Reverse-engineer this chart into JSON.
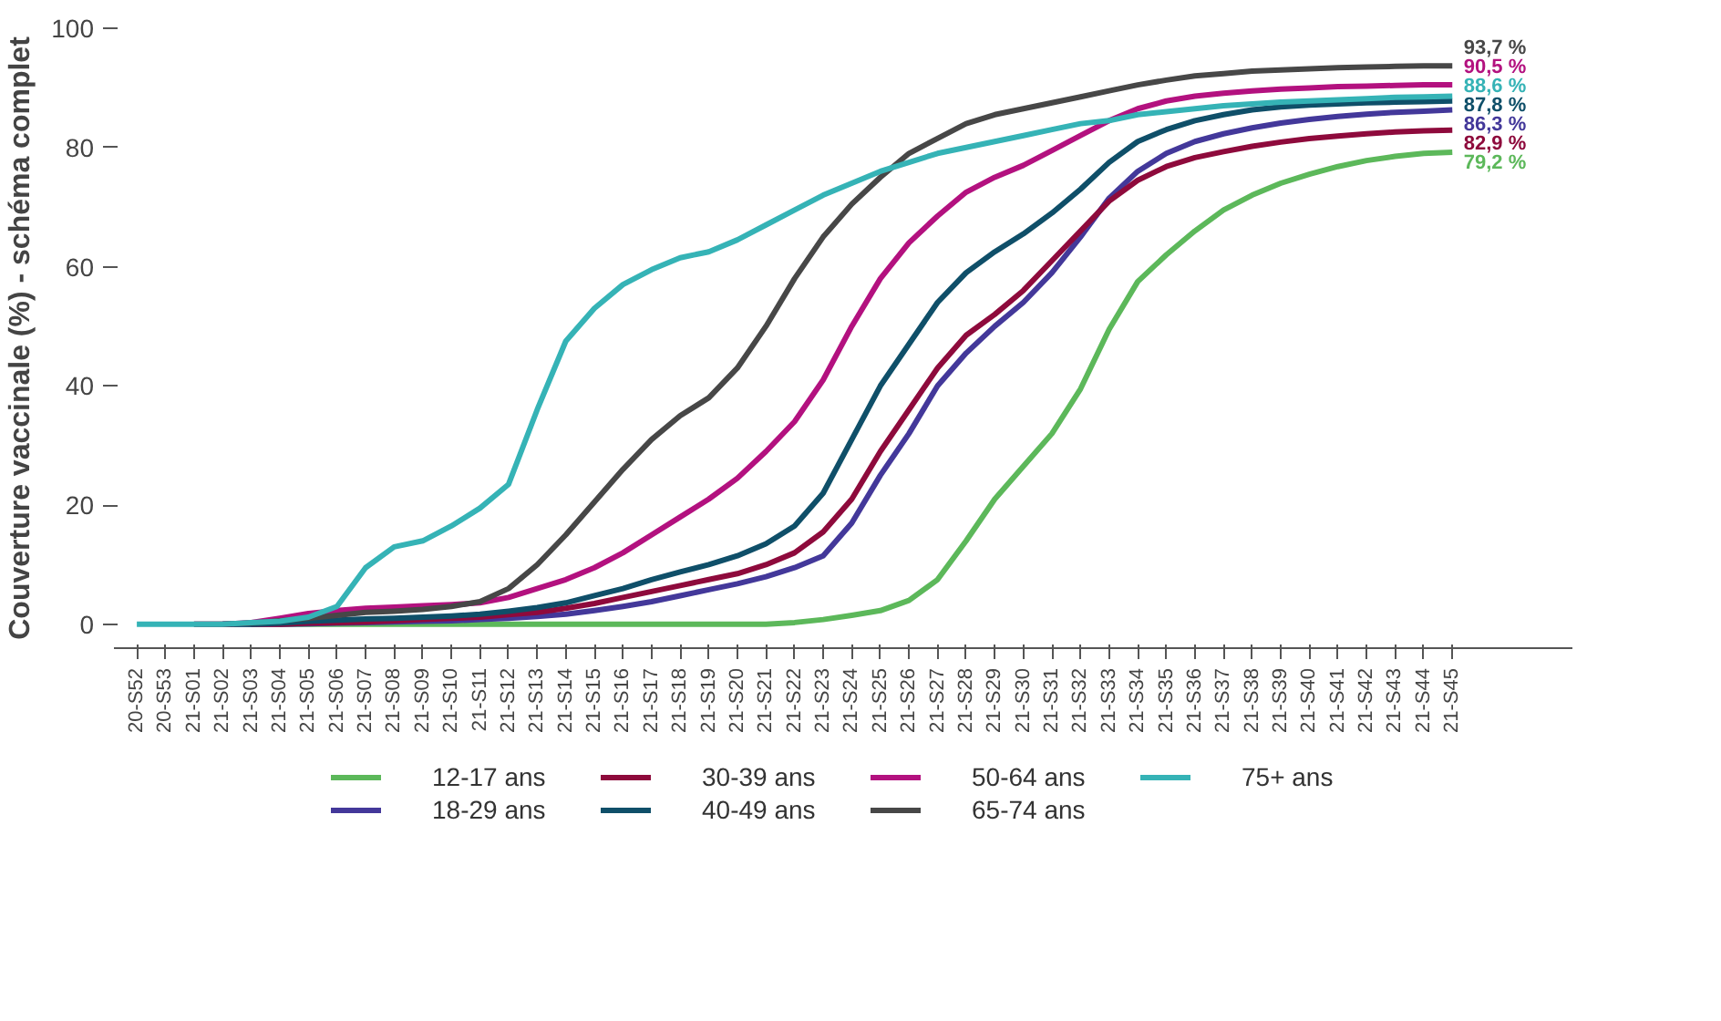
{
  "chart_data": {
    "type": "line",
    "ylabel": "Couverture vaccinale (%) - schéma complet",
    "categories": [
      "20-S52",
      "20-S53",
      "21-S01",
      "21-S02",
      "21-S03",
      "21-S04",
      "21-S05",
      "21-S06",
      "21-S07",
      "21-S08",
      "21-S09",
      "21-S10",
      "21-S11",
      "21-S12",
      "21-S13",
      "21-S14",
      "21-S15",
      "21-S16",
      "21-S17",
      "21-S18",
      "21-S19",
      "21-S20",
      "21-S21",
      "21-S22",
      "21-S23",
      "21-S24",
      "21-S25",
      "21-S26",
      "21-S27",
      "21-S28",
      "21-S29",
      "21-S30",
      "21-S31",
      "21-S32",
      "21-S33",
      "21-S34",
      "21-S35",
      "21-S36",
      "21-S37",
      "21-S38",
      "21-S39",
      "21-S40",
      "21-S41",
      "21-S42",
      "21-S43",
      "21-S44",
      "21-S45"
    ],
    "ylim": [
      -4,
      100
    ],
    "yticks": [
      0,
      20,
      40,
      60,
      80,
      100
    ],
    "grid": false,
    "legend": "bottom",
    "marker": "none",
    "line_style": "solid",
    "series": [
      {
        "name": "12-17 ans",
        "color": "#5cb85a",
        "values": [
          null,
          null,
          null,
          null,
          null,
          0,
          0,
          0,
          0,
          0,
          0,
          0,
          0,
          0,
          0,
          0,
          0,
          0,
          0,
          0,
          0,
          0,
          0,
          0.3,
          0.8,
          1.5,
          2.3,
          4,
          7.5,
          14,
          21,
          26.5,
          32,
          39.5,
          49.5,
          57.5,
          62,
          66,
          69.5,
          72,
          74,
          75.5,
          76.8,
          77.8,
          78.5,
          79,
          79.2
        ],
        "value_labels": [
          null,
          null,
          null,
          null,
          null,
          null,
          null,
          null,
          null,
          null,
          null,
          null,
          null,
          null,
          null,
          null,
          null,
          null,
          null,
          null,
          null,
          null,
          null,
          null,
          null,
          null,
          null,
          null,
          null,
          null,
          null,
          null,
          null,
          null,
          null,
          null,
          null,
          null,
          null,
          null,
          null,
          null,
          null,
          null,
          null,
          null,
          "79,2 %"
        ]
      },
      {
        "name": "18-29 ans",
        "color": "#43389a",
        "values": [
          null,
          null,
          null,
          0,
          0,
          0,
          0.1,
          0.2,
          0.3,
          0.4,
          0.5,
          0.6,
          0.8,
          1,
          1.3,
          1.7,
          2.3,
          3,
          3.8,
          4.8,
          5.8,
          6.8,
          8,
          9.5,
          11.5,
          17,
          25,
          32,
          40,
          45.5,
          50,
          54,
          59,
          65,
          71.5,
          76,
          79,
          81,
          82.3,
          83.3,
          84.1,
          84.7,
          85.2,
          85.6,
          85.9,
          86.1,
          86.3
        ],
        "value_labels": [
          null,
          null,
          null,
          null,
          null,
          null,
          null,
          null,
          null,
          null,
          null,
          null,
          null,
          null,
          null,
          null,
          null,
          null,
          null,
          null,
          null,
          null,
          null,
          null,
          null,
          null,
          null,
          null,
          null,
          null,
          null,
          null,
          null,
          null,
          null,
          null,
          null,
          null,
          null,
          null,
          null,
          null,
          null,
          null,
          null,
          null,
          "86,3 %"
        ]
      },
      {
        "name": "30-39 ans",
        "color": "#8e0a3c",
        "values": [
          null,
          null,
          null,
          null,
          0,
          0,
          0.2,
          0.3,
          0.4,
          0.6,
          0.8,
          1,
          1.2,
          1.6,
          2,
          2.7,
          3.5,
          4.5,
          5.5,
          6.5,
          7.5,
          8.5,
          10,
          12,
          15.5,
          21,
          29,
          36,
          43,
          48.5,
          52,
          56,
          61,
          66,
          71,
          74.5,
          76.8,
          78.3,
          79.3,
          80.2,
          80.9,
          81.5,
          81.9,
          82.3,
          82.6,
          82.8,
          82.9
        ],
        "value_labels": [
          null,
          null,
          null,
          null,
          null,
          null,
          null,
          null,
          null,
          null,
          null,
          null,
          null,
          null,
          null,
          null,
          null,
          null,
          null,
          null,
          null,
          null,
          null,
          null,
          null,
          null,
          null,
          null,
          null,
          null,
          null,
          null,
          null,
          null,
          null,
          null,
          null,
          null,
          null,
          null,
          null,
          null,
          null,
          null,
          null,
          null,
          "82,9 %"
        ]
      },
      {
        "name": "40-49 ans",
        "color": "#0f4f69",
        "values": [
          null,
          null,
          null,
          0,
          0,
          0.2,
          0.5,
          0.7,
          0.9,
          1,
          1.2,
          1.4,
          1.7,
          2.2,
          2.8,
          3.6,
          4.8,
          6,
          7.5,
          8.8,
          10,
          11.5,
          13.5,
          16.5,
          22,
          31,
          40,
          47,
          54,
          59,
          62.5,
          65.5,
          69,
          73,
          77.5,
          81,
          83,
          84.5,
          85.5,
          86.3,
          86.8,
          87.1,
          87.3,
          87.5,
          87.6,
          87.7,
          87.8
        ],
        "value_labels": [
          null,
          null,
          null,
          null,
          null,
          null,
          null,
          null,
          null,
          null,
          null,
          null,
          null,
          null,
          null,
          null,
          null,
          null,
          null,
          null,
          null,
          null,
          null,
          null,
          null,
          null,
          null,
          null,
          null,
          null,
          null,
          null,
          null,
          null,
          null,
          null,
          null,
          null,
          null,
          null,
          null,
          null,
          null,
          null,
          null,
          null,
          "87,8 %"
        ]
      },
      {
        "name": "50-64 ans",
        "color": "#b3117f",
        "values": [
          null,
          null,
          0,
          0,
          0.3,
          1,
          1.8,
          2.3,
          2.7,
          2.9,
          3.1,
          3.3,
          3.6,
          4.5,
          6,
          7.5,
          9.5,
          12,
          15,
          18,
          21,
          24.5,
          29,
          34,
          41,
          50,
          58,
          64,
          68.5,
          72.5,
          75,
          77,
          79.5,
          82,
          84.5,
          86.5,
          87.8,
          88.6,
          89.1,
          89.5,
          89.8,
          90,
          90.2,
          90.3,
          90.4,
          90.5,
          90.5
        ],
        "value_labels": [
          null,
          null,
          null,
          null,
          null,
          null,
          null,
          null,
          null,
          null,
          null,
          null,
          null,
          null,
          null,
          null,
          null,
          null,
          null,
          null,
          null,
          null,
          null,
          null,
          null,
          null,
          null,
          null,
          null,
          null,
          null,
          null,
          null,
          null,
          null,
          null,
          null,
          null,
          null,
          null,
          null,
          null,
          null,
          null,
          null,
          null,
          "90,5 %"
        ]
      },
      {
        "name": "65-74 ans",
        "color": "#474747",
        "values": [
          null,
          null,
          0,
          0,
          0.2,
          0.6,
          1,
          1.5,
          2,
          2.2,
          2.5,
          3,
          3.8,
          6,
          10,
          15,
          20.5,
          26,
          31,
          35,
          38,
          43,
          50,
          58,
          65,
          70.5,
          75,
          79,
          81.5,
          84,
          85.5,
          86.5,
          87.5,
          88.5,
          89.5,
          90.5,
          91.3,
          92,
          92.4,
          92.8,
          93,
          93.2,
          93.4,
          93.5,
          93.6,
          93.7,
          93.7
        ],
        "value_labels": [
          null,
          null,
          null,
          null,
          null,
          null,
          null,
          null,
          null,
          null,
          null,
          null,
          null,
          null,
          null,
          null,
          null,
          null,
          null,
          null,
          null,
          null,
          null,
          null,
          null,
          null,
          null,
          null,
          null,
          null,
          null,
          null,
          null,
          null,
          null,
          null,
          null,
          null,
          null,
          null,
          null,
          null,
          null,
          null,
          null,
          null,
          "93,7 %"
        ]
      },
      {
        "name": "75+ ans",
        "color": "#35b3b6",
        "values": [
          0,
          0,
          0,
          0,
          0.3,
          0.5,
          1.2,
          3,
          9.5,
          13,
          14,
          16.5,
          19.5,
          23.5,
          36,
          47.5,
          53,
          57,
          59.5,
          61.5,
          62.5,
          64.5,
          67,
          69.5,
          72,
          74,
          76,
          77.5,
          79,
          80,
          81,
          82,
          83,
          84,
          84.5,
          85.5,
          86,
          86.5,
          87,
          87.3,
          87.6,
          87.8,
          88,
          88.2,
          88.4,
          88.5,
          88.6
        ],
        "value_labels": [
          null,
          null,
          null,
          null,
          null,
          null,
          null,
          null,
          null,
          null,
          null,
          null,
          null,
          null,
          null,
          null,
          null,
          null,
          null,
          null,
          null,
          null,
          null,
          null,
          null,
          null,
          null,
          null,
          null,
          null,
          null,
          null,
          null,
          null,
          null,
          null,
          null,
          null,
          null,
          null,
          null,
          null,
          null,
          null,
          null,
          null,
          "88,6 %"
        ]
      }
    ]
  }
}
